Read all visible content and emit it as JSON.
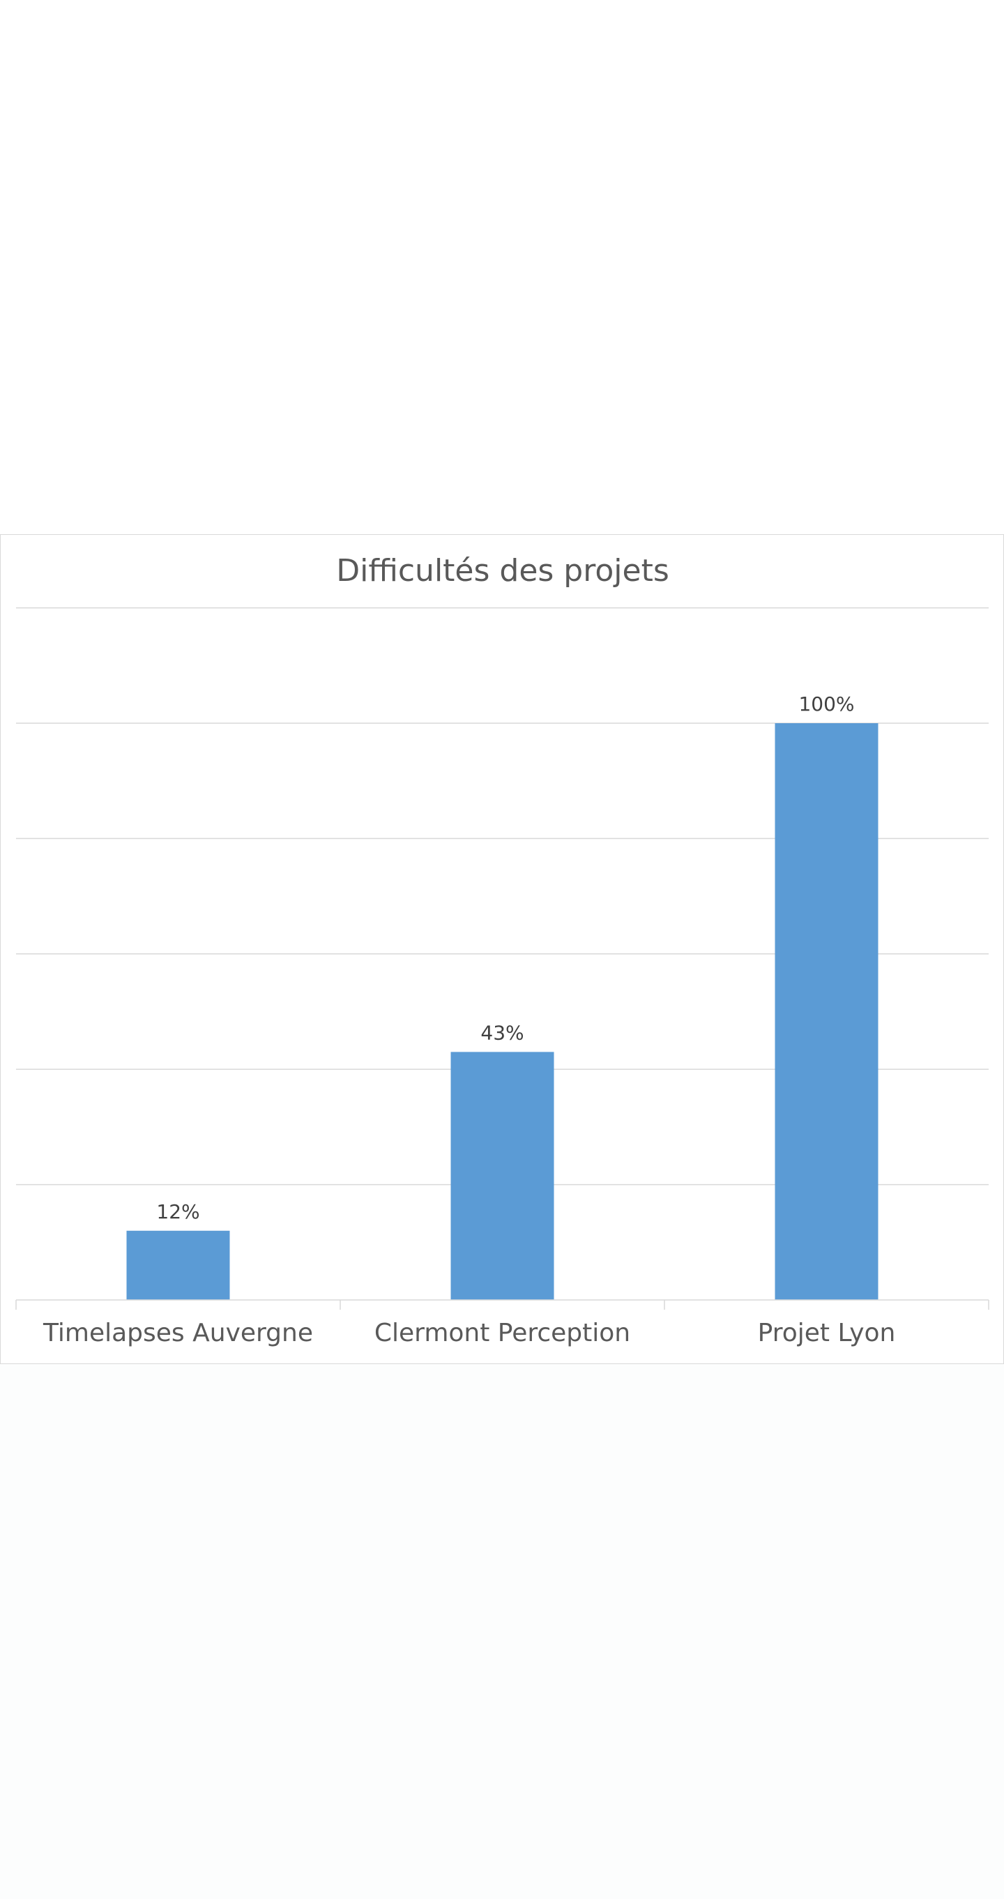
{
  "chart_data": {
    "type": "bar",
    "title": "Difficultés des projets",
    "categories": [
      "Timelapses Auvergne",
      "Clermont Perception",
      "Projet Lyon"
    ],
    "series": [
      {
        "values": [
          12,
          43,
          100
        ],
        "value_labels": [
          "12%",
          "43%",
          "100%"
        ]
      }
    ],
    "ylim": [
      0,
      120
    ],
    "gridlines": true,
    "legend": "none",
    "bar_color": "#5b9bd5",
    "gridline_color": "#d9d9d9"
  }
}
